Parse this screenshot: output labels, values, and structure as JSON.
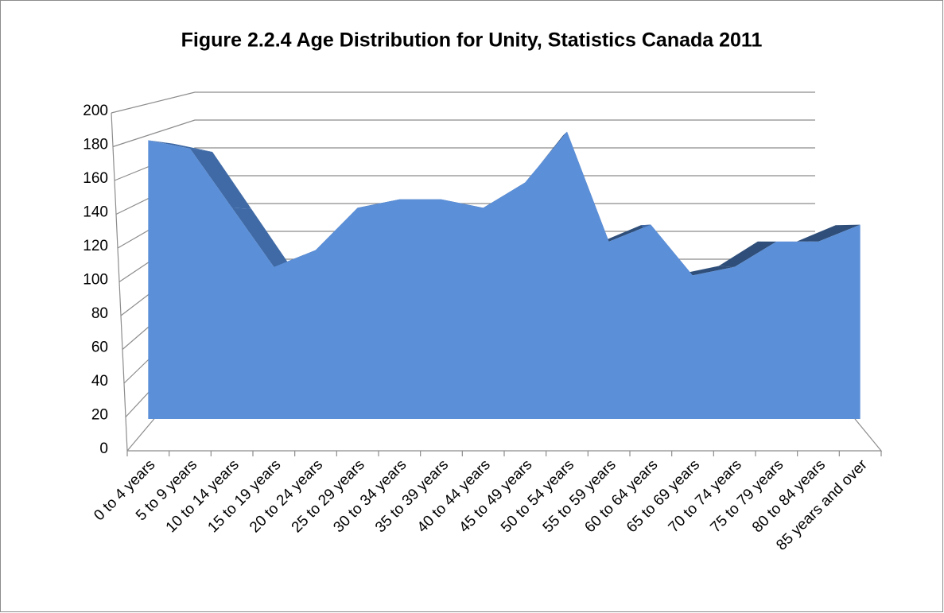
{
  "chart_data": {
    "type": "area3d",
    "title": "Figure 2.2.4 Age Distribution for Unity, Statistics Canada 2011",
    "categories": [
      "0 to 4 years",
      "5 to 9 years",
      "10 to 14 years",
      "15 to 19 years",
      "20 to 24 years",
      "25 to 29 years",
      "30 to 34 years",
      "35 to 39 years",
      "40 to 44 years",
      "45 to 49 years",
      "50 to 54 years",
      "55 to 59 years",
      "60 to 64 years",
      "65 to 69 years",
      "70 to 74 years",
      "75 to 79 years",
      "80 to 84 years",
      "85 years and over"
    ],
    "values": [
      165,
      160,
      125,
      90,
      100,
      125,
      130,
      130,
      125,
      140,
      170,
      105,
      115,
      85,
      90,
      105,
      105,
      115
    ],
    "color": "#5b8fd8",
    "ylim": [
      0,
      200
    ],
    "yticks": [
      0,
      20,
      40,
      60,
      80,
      100,
      120,
      140,
      160,
      180,
      200
    ],
    "grid": true
  }
}
